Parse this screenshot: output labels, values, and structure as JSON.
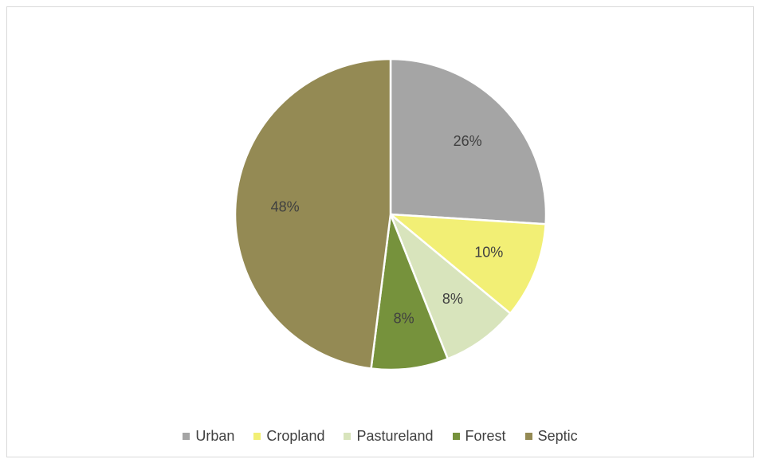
{
  "chart_data": {
    "type": "pie",
    "title": "",
    "categories": [
      "Urban",
      "Cropland",
      "Pastureland",
      "Forest",
      "Septic"
    ],
    "values": [
      26,
      10,
      8,
      8,
      48
    ],
    "data_labels": [
      "26%",
      "10%",
      "8%",
      "8%",
      "48%"
    ],
    "colors": [
      "#a5a5a5",
      "#f2ef75",
      "#d8e4bc",
      "#76923c",
      "#948a54"
    ],
    "start_angle_deg": 0,
    "direction": "clockwise",
    "legend_position": "bottom"
  }
}
